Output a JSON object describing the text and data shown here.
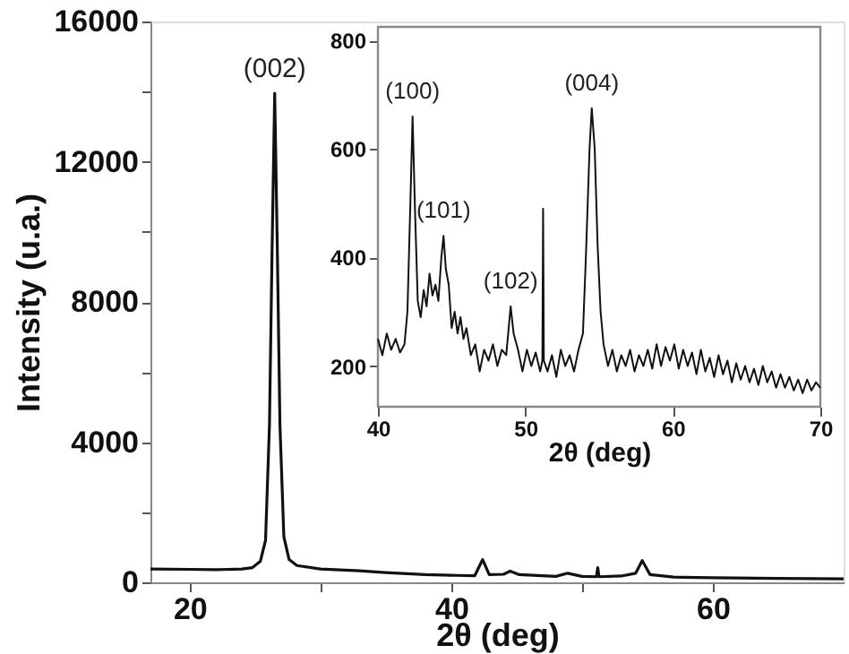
{
  "chart_data": [
    {
      "type": "line",
      "xlabel": "2θ (deg)",
      "ylabel": "Intensity (u.a.)",
      "xlim": [
        17,
        70
      ],
      "ylim": [
        0,
        16000
      ],
      "xticks": [
        20,
        {
          "value": 30,
          "label": null
        },
        40,
        {
          "value": 50,
          "label": null
        },
        60
      ],
      "yticks": [
        0,
        {
          "value": 2000,
          "label": null
        },
        4000,
        {
          "value": 6000,
          "label": null
        },
        8000,
        {
          "value": 10000,
          "label": null
        },
        12000,
        {
          "value": 14000,
          "label": null
        },
        16000
      ],
      "grid": false,
      "marker": "none",
      "line_style": "solid",
      "series": [
        {
          "color": "#111111",
          "x": [
            17,
            20,
            22,
            24,
            24.8,
            25.4,
            25.8,
            26.1,
            26.3,
            26.5,
            26.7,
            26.9,
            27.2,
            27.6,
            28.2,
            30,
            33,
            35,
            38,
            40,
            41.8,
            42.4,
            42.9,
            44,
            44.5,
            45.2,
            48,
            48.9,
            50,
            51.1,
            51.2,
            51.3,
            53,
            54.1,
            54.6,
            55.2,
            57,
            60,
            65,
            70
          ],
          "values": [
            380,
            370,
            360,
            380,
            420,
            600,
            1200,
            4500,
            9500,
            13950,
            9500,
            4500,
            1300,
            650,
            480,
            380,
            330,
            280,
            220,
            200,
            190,
            650,
            220,
            230,
            320,
            220,
            170,
            260,
            170,
            160,
            420,
            160,
            180,
            260,
            620,
            220,
            150,
            130,
            110,
            100
          ]
        }
      ],
      "annotations": [
        {
          "text": "(002)",
          "x": 26.5,
          "y": 13950
        }
      ]
    },
    {
      "type": "line",
      "xlabel": "2θ (deg)",
      "xlim": [
        40,
        70
      ],
      "ylim": [
        125,
        825
      ],
      "xticks": [
        40,
        50,
        60,
        70
      ],
      "yticks": [
        200,
        400,
        600,
        800
      ],
      "grid": false,
      "marker": "none",
      "line_style": "solid",
      "series": [
        {
          "color": "#111111",
          "x": [
            40,
            40.3,
            40.6,
            40.9,
            41.2,
            41.5,
            41.8,
            42.0,
            42.2,
            42.35,
            42.5,
            42.7,
            42.9,
            43.1,
            43.3,
            43.5,
            43.7,
            43.9,
            44.1,
            44.3,
            44.45,
            44.6,
            44.8,
            45.0,
            45.2,
            45.4,
            45.6,
            45.8,
            46.0,
            46.3,
            46.6,
            46.9,
            47.2,
            47.5,
            47.8,
            48.1,
            48.4,
            48.7,
            49.0,
            49.2,
            49.5,
            49.8,
            50.1,
            50.4,
            50.7,
            51.0,
            51.15,
            51.2,
            51.25,
            51.5,
            51.8,
            52.1,
            52.4,
            52.7,
            53.0,
            53.3,
            53.6,
            53.9,
            54.1,
            54.35,
            54.5,
            54.7,
            54.9,
            55.1,
            55.3,
            55.6,
            55.9,
            56.2,
            56.5,
            56.8,
            57.1,
            57.4,
            57.7,
            58,
            58.3,
            58.6,
            58.9,
            59.2,
            59.5,
            59.8,
            60.1,
            60.4,
            60.7,
            61,
            61.3,
            61.6,
            61.9,
            62.2,
            62.5,
            62.8,
            63.1,
            63.4,
            63.7,
            64,
            64.3,
            64.6,
            64.9,
            65.2,
            65.5,
            65.8,
            66.1,
            66.4,
            66.7,
            67,
            67.3,
            67.6,
            67.9,
            68.2,
            68.5,
            68.8,
            69.1,
            69.4,
            69.7,
            70
          ],
          "values": [
            250,
            220,
            260,
            230,
            250,
            225,
            240,
            300,
            500,
            660,
            500,
            320,
            290,
            340,
            310,
            370,
            330,
            350,
            320,
            400,
            440,
            380,
            350,
            270,
            300,
            260,
            290,
            250,
            270,
            220,
            240,
            190,
            230,
            210,
            240,
            200,
            230,
            220,
            310,
            260,
            230,
            190,
            230,
            200,
            225,
            190,
            210,
            490,
            210,
            190,
            220,
            180,
            230,
            200,
            220,
            190,
            230,
            260,
            400,
            600,
            675,
            600,
            420,
            300,
            240,
            200,
            230,
            190,
            220,
            200,
            230,
            190,
            220,
            200,
            230,
            195,
            240,
            200,
            235,
            210,
            240,
            195,
            230,
            200,
            225,
            185,
            230,
            190,
            215,
            180,
            220,
            185,
            210,
            170,
            205,
            175,
            200,
            170,
            195,
            165,
            200,
            170,
            190,
            160,
            185,
            160,
            180,
            155,
            175,
            150,
            175,
            155,
            170,
            160
          ]
        }
      ],
      "annotations": [
        {
          "text": "(100)",
          "x": 42.35,
          "y": 660
        },
        {
          "text": "(101)",
          "x": 44.45,
          "y": 440
        },
        {
          "text": "(102)",
          "x": 49.0,
          "y": 310
        },
        {
          "text": "(004)",
          "x": 54.5,
          "y": 675
        }
      ]
    }
  ]
}
